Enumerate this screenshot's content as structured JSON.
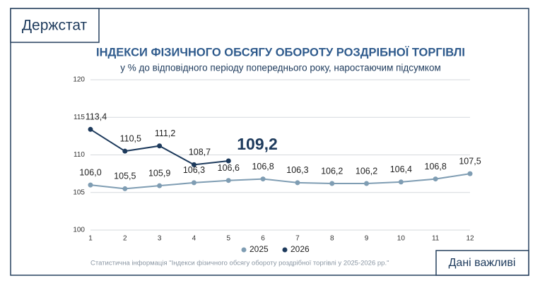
{
  "header": {
    "brand": "Держстат",
    "badge": "Дані важливі"
  },
  "chart_data": {
    "type": "line",
    "title": "ІНДЕКСИ ФІЗИЧНОГО ОБСЯГУ ОБОРОТУ РОЗДРІБНОЇ ТОРГІВЛІ",
    "subtitle": "у % до відповідного періоду попереднього року, наростаючим підсумком",
    "source": "Статистична інформація \"Індекси фізичного обсягу обороту роздрібної торгівлі у 2025-2026 рр.\"",
    "x": [
      1,
      2,
      3,
      4,
      5,
      6,
      7,
      8,
      9,
      10,
      11,
      12
    ],
    "xlim": [
      1,
      12
    ],
    "xticks": [
      1,
      2,
      3,
      4,
      5,
      6,
      7,
      8,
      9,
      10,
      11,
      12
    ],
    "ylim": [
      100,
      120
    ],
    "yticks": [
      100,
      105,
      110,
      115,
      120
    ],
    "grid": true,
    "legend": "bottom",
    "series": [
      {
        "name": "2025",
        "color": "#7f9db3",
        "values": [
          106.0,
          105.5,
          105.9,
          106.3,
          106.6,
          106.8,
          106.3,
          106.2,
          106.2,
          106.4,
          106.8,
          107.5
        ],
        "value_labels": [
          "106,0",
          "105,5",
          "105,9",
          "106,3",
          "106,6",
          "106,8",
          "106,3",
          "106,2",
          "106,2",
          "106,4",
          "106,8",
          "107,5"
        ]
      },
      {
        "name": "2026",
        "color": "#1d3a5c",
        "values": [
          113.4,
          110.5,
          111.2,
          108.7,
          109.2,
          null,
          null,
          null,
          null,
          null,
          null,
          null
        ],
        "value_labels": [
          "113,4",
          "110,5",
          "111,2",
          "108,7",
          "109,2",
          null,
          null,
          null,
          null,
          null,
          null,
          null
        ]
      }
    ]
  }
}
